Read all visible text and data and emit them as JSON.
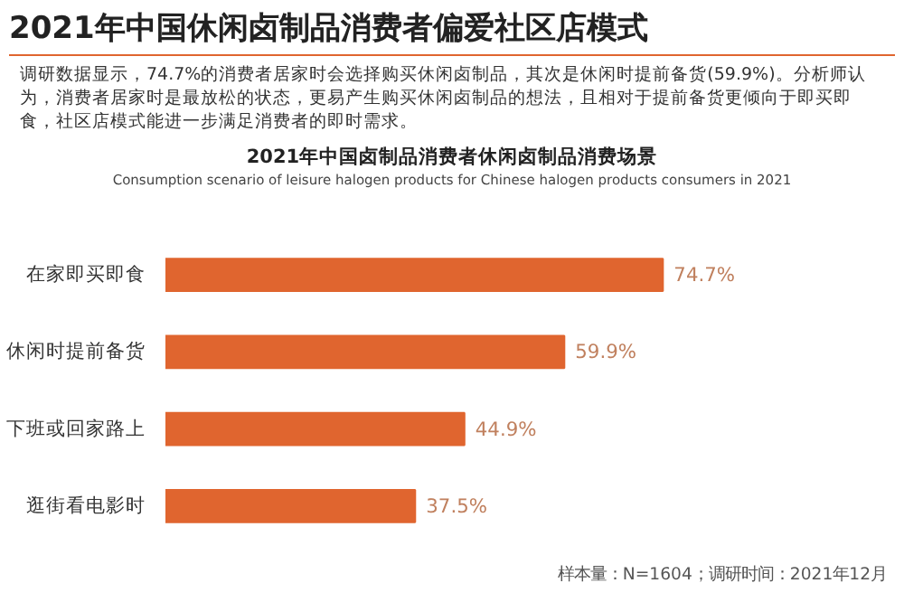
{
  "chart_data": {
    "type": "bar",
    "orientation": "horizontal",
    "title": "2021年中国休闲卤制品消费者偏爱社区店模式",
    "subtitle": "调研数据显示，74.7%的消费者居家时会选择购买休闲卤制品，其次是休闲时提前备货(59.9%)。分析师认为，消费者居家时是最放松的状态，更易产生购买休闲卤制品的想法，且相对于提前备货更倾向于即买即食，社区店模式能进一步满足消费者的即时需求。",
    "annotations": [
      "2021年中国卤制品消费者休闲卤制品消费场景",
      "Consumption scenario of leisure halogen products for Chinese halogen products consumers in 2021",
      "样本量：N=1604；调研时间：2021年12月"
    ],
    "categories": [
      "在家即买即食",
      "休闲时提前备货",
      "下班或回家路上",
      "逛街看电影时"
    ],
    "values": [
      74.7,
      59.9,
      44.9,
      37.5
    ],
    "value_labels": [
      "74.7%",
      "59.9%",
      "44.9%",
      "37.5%"
    ],
    "color": "#e0652f",
    "grid": false
  }
}
